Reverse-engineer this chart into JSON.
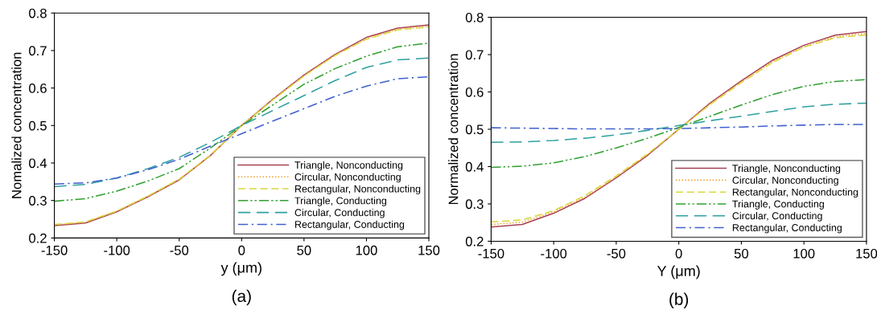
{
  "chart_data": [
    {
      "type": "line",
      "xlabel": "y (μm)",
      "ylabel": "Nomalized concentration",
      "annotations": [
        "(a)"
      ],
      "legend": "lower right",
      "grid": false,
      "marker": "none",
      "x": [
        -150,
        -125,
        -100,
        -75,
        -50,
        -25,
        0,
        25,
        50,
        75,
        100,
        125,
        150
      ],
      "xlim": [
        -150,
        150
      ],
      "xticks": [
        -150,
        -100,
        -50,
        0,
        50,
        100,
        150
      ],
      "ylim": [
        0.2,
        0.8
      ],
      "yticks": [
        0.2,
        0.3,
        0.4,
        0.5,
        0.6,
        0.7,
        0.8
      ],
      "series": [
        {
          "name": "Triangle, Nonconducting",
          "color": "#a84050",
          "line_style": "solid",
          "values": [
            0.233,
            0.24,
            0.27,
            0.31,
            0.355,
            0.42,
            0.5,
            0.57,
            0.635,
            0.69,
            0.735,
            0.76,
            0.768
          ]
        },
        {
          "name": "Circular, Nonconducting",
          "color": "#f0a030",
          "line_style": "dotted",
          "values": [
            0.235,
            0.242,
            0.271,
            0.311,
            0.356,
            0.42,
            0.5,
            0.569,
            0.633,
            0.688,
            0.732,
            0.757,
            0.765
          ]
        },
        {
          "name": "Rectangular, Nonconducting",
          "color": "#d8d840",
          "line_style": "dashed",
          "values": [
            0.236,
            0.243,
            0.272,
            0.312,
            0.357,
            0.421,
            0.5,
            0.568,
            0.632,
            0.687,
            0.73,
            0.755,
            0.763
          ]
        },
        {
          "name": "Triangle, Conducting",
          "color": "#30a030",
          "line_style": "dashdotdot",
          "values": [
            0.298,
            0.305,
            0.325,
            0.352,
            0.385,
            0.44,
            0.5,
            0.555,
            0.61,
            0.652,
            0.685,
            0.71,
            0.72
          ]
        },
        {
          "name": "Circular, Conducting",
          "color": "#30a0a0",
          "line_style": "longdash",
          "values": [
            0.337,
            0.343,
            0.36,
            0.385,
            0.415,
            0.455,
            0.5,
            0.54,
            0.58,
            0.62,
            0.655,
            0.675,
            0.68
          ]
        },
        {
          "name": "Rectangular, Conducting",
          "color": "#4060d0",
          "line_style": "dashdot",
          "values": [
            0.344,
            0.347,
            0.36,
            0.382,
            0.41,
            0.445,
            0.478,
            0.512,
            0.545,
            0.578,
            0.605,
            0.625,
            0.63
          ]
        }
      ]
    },
    {
      "type": "line",
      "xlabel": "Y (μm)",
      "ylabel": "Normalized concentration",
      "annotations": [
        "(b)"
      ],
      "legend": "lower right",
      "grid": false,
      "marker": "none",
      "x": [
        -150,
        -125,
        -100,
        -75,
        -50,
        -25,
        0,
        25,
        50,
        75,
        100,
        125,
        150
      ],
      "xlim": [
        -150,
        150
      ],
      "xticks": [
        -150,
        -100,
        -50,
        0,
        50,
        100,
        150
      ],
      "ylim": [
        0.2,
        0.8
      ],
      "yticks": [
        0.2,
        0.3,
        0.4,
        0.5,
        0.6,
        0.7,
        0.8
      ],
      "series": [
        {
          "name": "Triangle, Nonconducting",
          "color": "#a84050",
          "line_style": "solid",
          "values": [
            0.238,
            0.245,
            0.275,
            0.315,
            0.37,
            0.43,
            0.5,
            0.57,
            0.63,
            0.685,
            0.725,
            0.752,
            0.762
          ]
        },
        {
          "name": "Circular, Nonconducting",
          "color": "#f0a030",
          "line_style": "dotted",
          "values": [
            0.245,
            0.251,
            0.279,
            0.318,
            0.372,
            0.432,
            0.5,
            0.568,
            0.627,
            0.681,
            0.721,
            0.748,
            0.757
          ]
        },
        {
          "name": "Rectangular, Nonconducting",
          "color": "#d8d840",
          "line_style": "dashed",
          "values": [
            0.252,
            0.257,
            0.282,
            0.322,
            0.375,
            0.434,
            0.5,
            0.566,
            0.625,
            0.679,
            0.72,
            0.745,
            0.753
          ]
        },
        {
          "name": "Triangle, Conducting",
          "color": "#30a030",
          "line_style": "dashdotdot",
          "values": [
            0.398,
            0.401,
            0.41,
            0.427,
            0.45,
            0.476,
            0.505,
            0.535,
            0.565,
            0.593,
            0.615,
            0.628,
            0.633
          ]
        },
        {
          "name": "Circular, Conducting",
          "color": "#30a0a0",
          "line_style": "longdash",
          "values": [
            0.465,
            0.466,
            0.47,
            0.476,
            0.485,
            0.497,
            0.51,
            0.523,
            0.535,
            0.548,
            0.56,
            0.567,
            0.57
          ]
        },
        {
          "name": "Rectangular, Conducting",
          "color": "#4060d0",
          "line_style": "dashdot",
          "values": [
            0.504,
            0.503,
            0.502,
            0.501,
            0.501,
            0.501,
            0.502,
            0.504,
            0.506,
            0.509,
            0.511,
            0.513,
            0.513
          ]
        }
      ]
    }
  ]
}
